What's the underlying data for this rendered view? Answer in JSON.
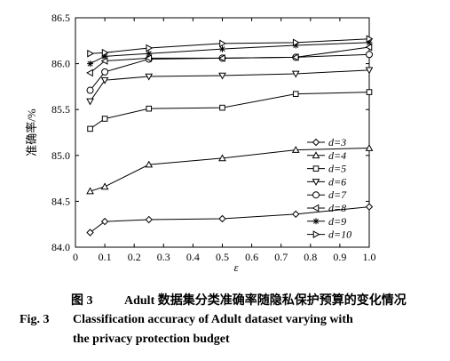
{
  "chart_data": {
    "type": "line",
    "xlabel": "ε",
    "ylabel": "准确率/%",
    "xlim": [
      0,
      1.0
    ],
    "ylim": [
      84.0,
      86.5
    ],
    "xticks": [
      "0",
      "0.1",
      "0.2",
      "0.3",
      "0.4",
      "0.5",
      "0.6",
      "0.7",
      "0.8",
      "0.9",
      "1.0"
    ],
    "yticks": [
      "84.0",
      "84.5",
      "85.0",
      "85.5",
      "86.0",
      "86.5"
    ],
    "legend_position": "bottom-right",
    "x": [
      0.05,
      0.1,
      0.25,
      0.5,
      0.75,
      1.0
    ],
    "series": [
      {
        "name": "d=3",
        "marker": "diamond",
        "values": [
          84.16,
          84.28,
          84.3,
          84.31,
          84.36,
          84.44
        ]
      },
      {
        "name": "d=4",
        "marker": "triangle-up",
        "values": [
          84.61,
          84.66,
          84.9,
          84.97,
          85.06,
          85.08
        ]
      },
      {
        "name": "d=5",
        "marker": "square",
        "values": [
          85.29,
          85.4,
          85.51,
          85.52,
          85.67,
          85.69
        ]
      },
      {
        "name": "d=6",
        "marker": "triangle-down",
        "values": [
          85.59,
          85.82,
          85.86,
          85.87,
          85.89,
          85.93
        ]
      },
      {
        "name": "d=7",
        "marker": "circle",
        "values": [
          85.71,
          85.91,
          86.05,
          86.06,
          86.07,
          86.1
        ]
      },
      {
        "name": "d=8",
        "marker": "triangle-left",
        "values": [
          85.9,
          86.03,
          86.06,
          86.06,
          86.07,
          86.18
        ]
      },
      {
        "name": "d=9",
        "marker": "asterisk",
        "values": [
          86.0,
          86.08,
          86.11,
          86.16,
          86.2,
          86.23
        ]
      },
      {
        "name": "d=10",
        "marker": "triangle-right",
        "values": [
          86.11,
          86.12,
          86.17,
          86.22,
          86.23,
          86.27
        ]
      }
    ]
  },
  "caption": {
    "cn_label": "图 3",
    "cn_text": "Adult 数据集分类准确率随隐私保护预算的变化情况",
    "en_label": "Fig. 3",
    "en_line1": "Classification accuracy of Adult dataset varying with",
    "en_line2": "the privacy protection budget"
  }
}
